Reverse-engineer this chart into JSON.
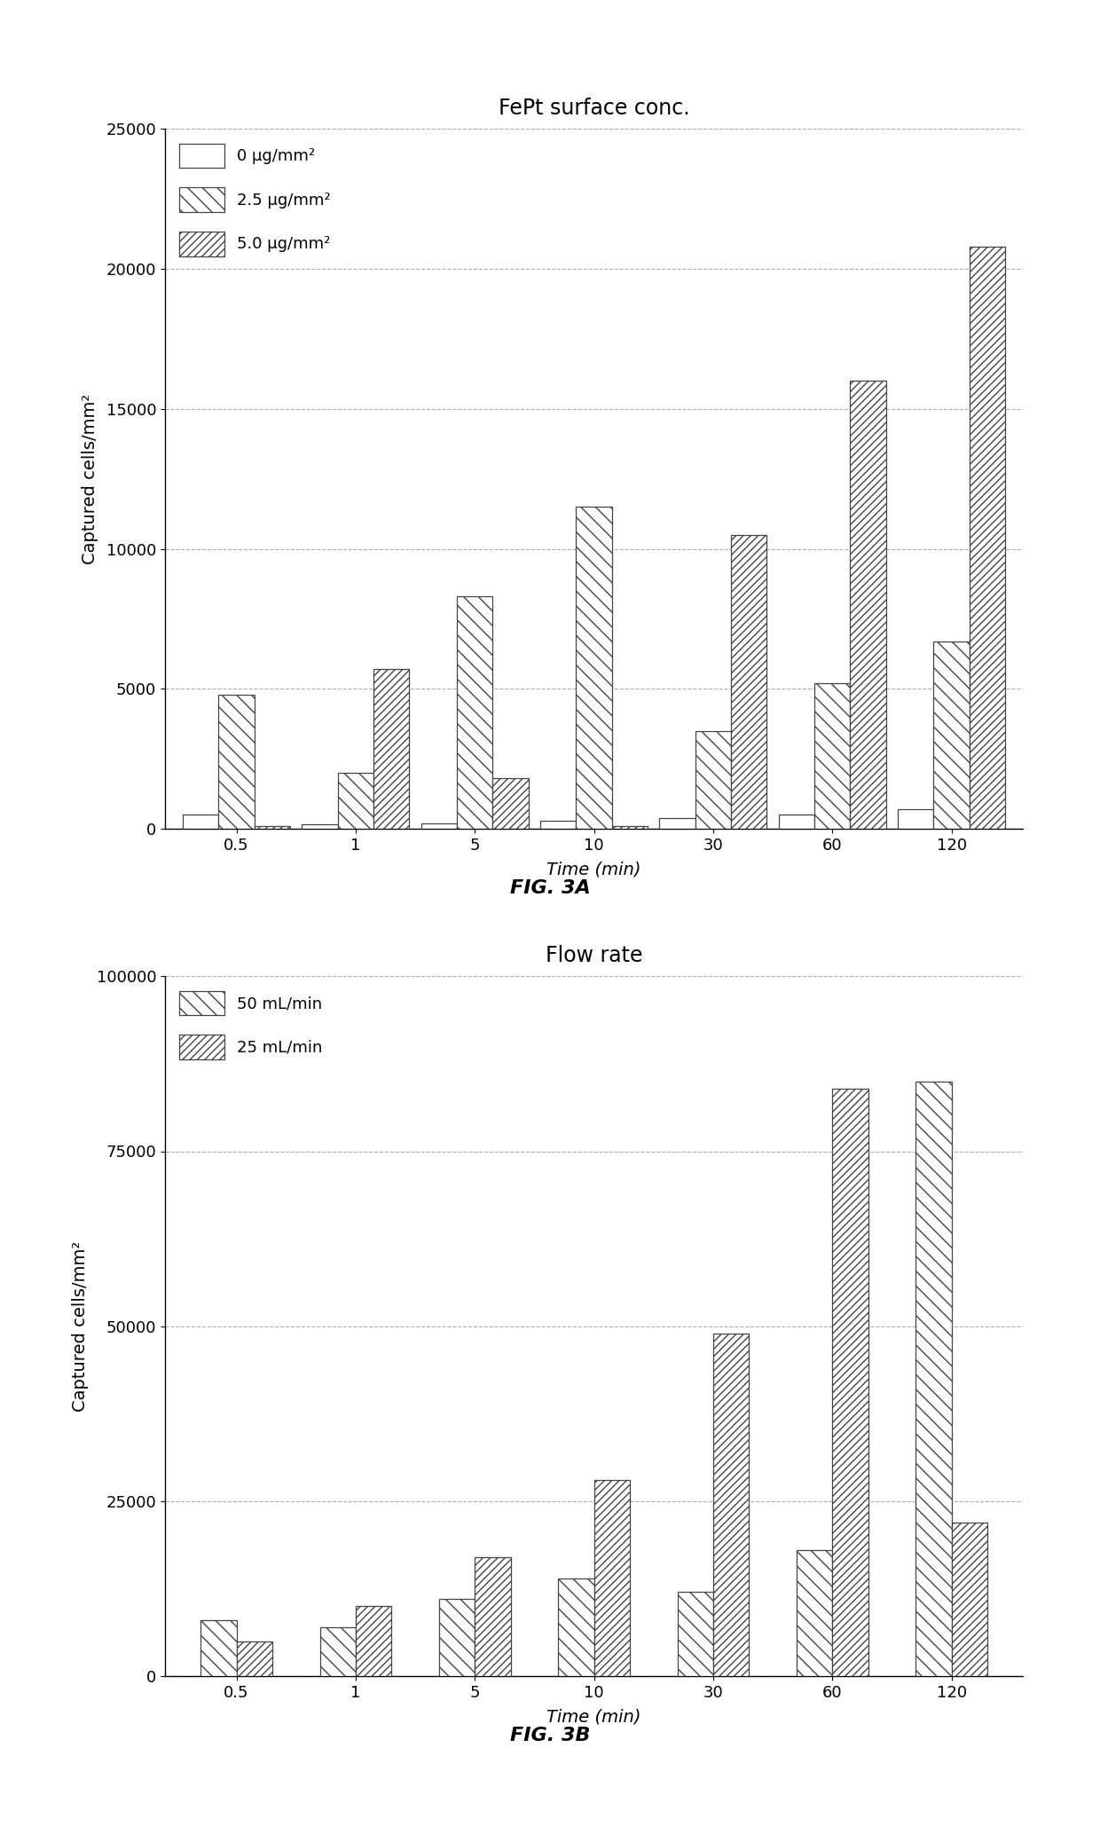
{
  "chart_a": {
    "title": "FePt surface conc.",
    "xlabel": "Time (min)",
    "ylabel": "Captured cells/mm²",
    "time_labels": [
      "0.5",
      "1",
      "5",
      "10",
      "30",
      "60",
      "120"
    ],
    "series": [
      {
        "label": "0 μg/mm²",
        "values": [
          500,
          150,
          200,
          300,
          400,
          500,
          700
        ],
        "hatch": ""
      },
      {
        "label": "2.5 μg/mm²",
        "values": [
          4800,
          2000,
          8300,
          11500,
          3500,
          5200,
          6700
        ],
        "hatch": "\\\\"
      },
      {
        "label": "5.0 μg/mm²",
        "values": [
          100,
          5700,
          1800,
          100,
          10500,
          16000,
          20800
        ],
        "hatch": "////"
      }
    ],
    "ylim": [
      0,
      25000
    ],
    "yticks": [
      0,
      5000,
      10000,
      15000,
      20000,
      25000
    ],
    "caption": "FIG. 3A"
  },
  "chart_b": {
    "title": "Flow rate",
    "xlabel": "Time (min)",
    "ylabel": "Captured cells/mm²",
    "time_labels": [
      "0.5",
      "1",
      "5",
      "10",
      "30",
      "60",
      "120"
    ],
    "series": [
      {
        "label": "50 mL/min",
        "values": [
          8000,
          7000,
          11000,
          14000,
          12000,
          18000,
          85000
        ],
        "hatch": "\\\\"
      },
      {
        "label": "25 mL/min",
        "values": [
          5000,
          10000,
          17000,
          28000,
          49000,
          84000,
          22000
        ],
        "hatch": "////"
      }
    ],
    "ylim": [
      0,
      100000
    ],
    "yticks": [
      0,
      25000,
      50000,
      75000,
      100000
    ],
    "caption": "FIG. 3B"
  },
  "bar_width": 0.3,
  "edge_color": "#444444",
  "face_color": "white",
  "background_color": "#ffffff",
  "grid_color": "#999999",
  "title_fontsize": 17,
  "label_fontsize": 14,
  "tick_fontsize": 13,
  "legend_fontsize": 13,
  "caption_fontsize": 16
}
